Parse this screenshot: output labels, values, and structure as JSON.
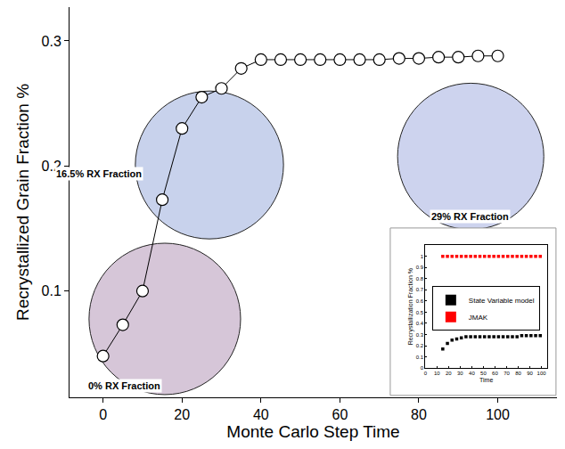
{
  "chart_data": [
    {
      "type": "scatter",
      "x_label": "Monte Carlo Step Time",
      "y_label": "Recrystallized Grain Fraction %",
      "x": [
        0,
        5,
        10,
        15,
        20,
        25,
        30,
        35,
        40,
        45,
        50,
        55,
        60,
        65,
        70,
        75,
        80,
        85,
        90,
        95,
        100
      ],
      "values": [
        0.048,
        0.073,
        0.1,
        0.173,
        0.23,
        0.255,
        0.262,
        0.278,
        0.285,
        0.285,
        0.285,
        0.285,
        0.285,
        0.285,
        0.285,
        0.286,
        0.286,
        0.287,
        0.287,
        0.288,
        0.288
      ],
      "color": "#000000",
      "marker": "open circle",
      "line_style": "solid",
      "xlim": [
        -8.5,
        115
      ],
      "ylim": [
        0.015,
        0.327
      ],
      "xticks": [
        0,
        20,
        40,
        60,
        80,
        100
      ],
      "yticks": [
        0.1,
        0.2,
        0.3
      ],
      "grid": false,
      "annotations": [
        "16.5% RX Fraction",
        "0% RX Fraction",
        "29% RX Fraction"
      ]
    },
    {
      "type": "scatter",
      "x_label": "Time",
      "y_label": "Recrystallization Fraction %",
      "xlim": [
        0,
        105
      ],
      "ylim": [
        0,
        1.1
      ],
      "xticks": [
        0,
        10,
        20,
        30,
        40,
        50,
        60,
        70,
        80,
        90,
        100
      ],
      "yticks": [
        0,
        0.1,
        0.2,
        0.3,
        0.4,
        0.5,
        0.6,
        0.7,
        0.8,
        0.9,
        1
      ],
      "grid": false,
      "legend": "right",
      "series": [
        {
          "name": "State Variable model",
          "color": "#000000",
          "marker": "square",
          "x": [
            15,
            19,
            23,
            27,
            31,
            35,
            39,
            43,
            47,
            51,
            55,
            59,
            63,
            67,
            71,
            75,
            79,
            83,
            87,
            91,
            95,
            99
          ],
          "values": [
            0.17,
            0.22,
            0.25,
            0.26,
            0.27,
            0.28,
            0.28,
            0.28,
            0.28,
            0.28,
            0.28,
            0.28,
            0.28,
            0.28,
            0.28,
            0.28,
            0.28,
            0.29,
            0.29,
            0.29,
            0.29,
            0.29
          ]
        },
        {
          "name": "JMAK",
          "color": "#ff0000",
          "marker": "square",
          "x": [
            15,
            19,
            23,
            27,
            31,
            35,
            39,
            43,
            47,
            51,
            55,
            59,
            63,
            67,
            71,
            75,
            79,
            83,
            87,
            91,
            95,
            99
          ],
          "values": [
            1,
            1,
            1,
            1,
            1,
            1,
            1,
            1,
            1,
            1,
            1,
            1,
            1,
            1,
            1,
            1,
            1,
            1,
            1,
            1,
            1,
            1
          ]
        }
      ]
    }
  ]
}
